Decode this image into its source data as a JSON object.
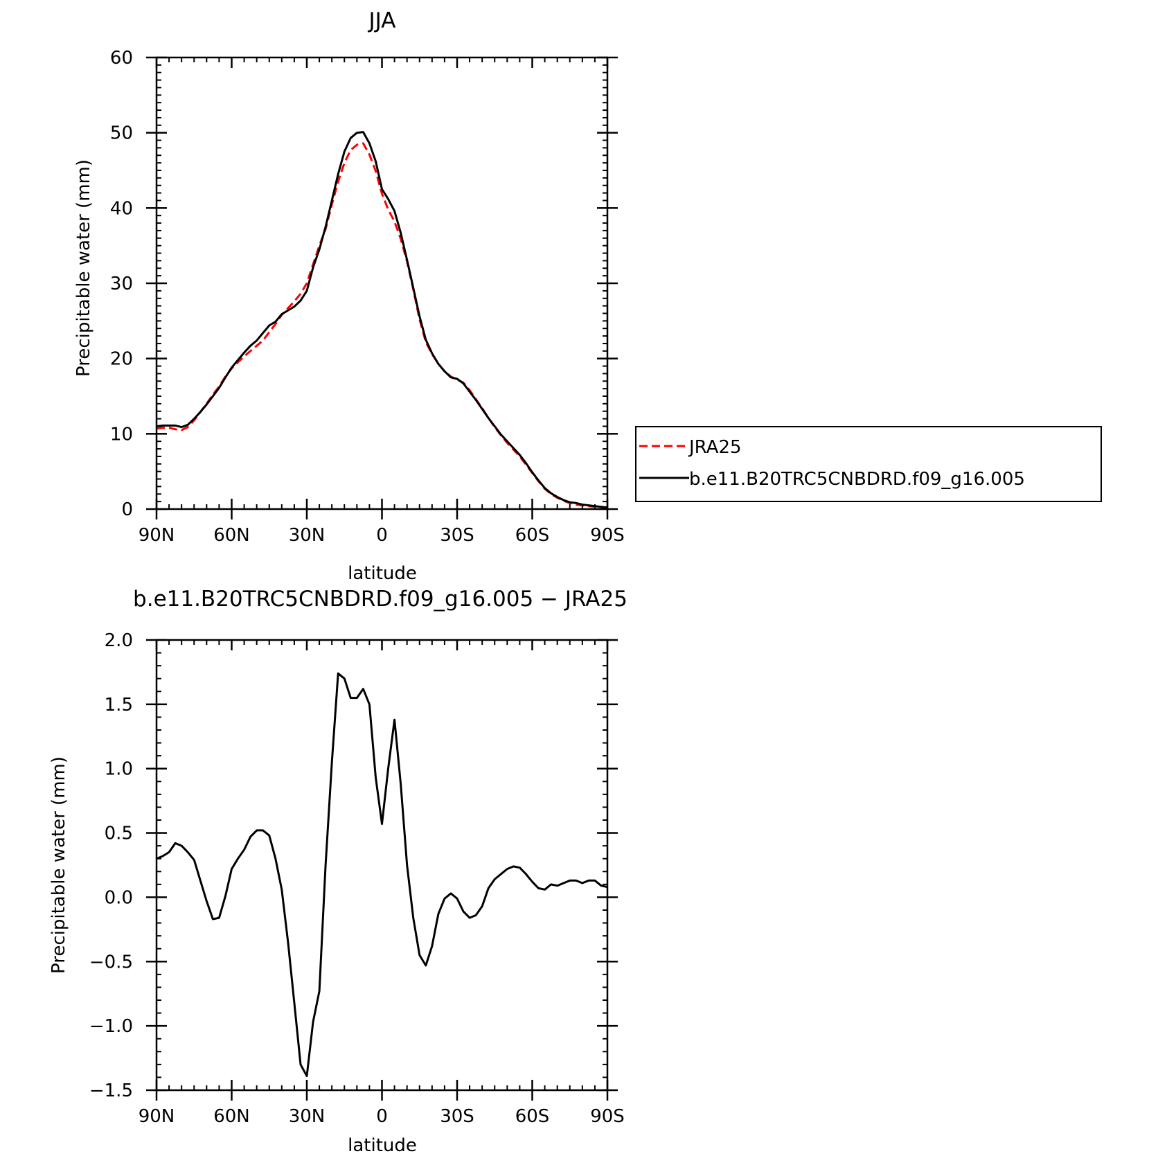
{
  "chart_data": [
    {
      "type": "line",
      "title": "JJA",
      "xlabel": "latitude",
      "ylabel": "Precipitable water (mm)",
      "xlim": [
        90,
        -90
      ],
      "ylim": [
        0,
        60
      ],
      "xticks": [
        90,
        60,
        30,
        0,
        -30,
        -60,
        -90
      ],
      "xtick_labels": [
        "90N",
        "60N",
        "30N",
        "0",
        "30S",
        "60S",
        "90S"
      ],
      "yticks": [
        0,
        10,
        20,
        30,
        40,
        50,
        60
      ],
      "ytick_labels": [
        "0",
        "10",
        "20",
        "30",
        "40",
        "50",
        "60"
      ],
      "grid": false,
      "legend_position": "right",
      "series": [
        {
          "name": "JRA25",
          "color": "#ff0000",
          "dash": "dashed",
          "x": [
            90,
            87.5,
            85,
            82.5,
            80,
            77.5,
            75,
            72.5,
            70,
            67.5,
            65,
            62.5,
            60,
            57.5,
            55,
            52.5,
            50,
            47.5,
            45,
            42.5,
            40,
            37.5,
            35,
            32.5,
            30,
            27.5,
            25,
            22.5,
            20,
            17.5,
            15,
            12.5,
            10,
            7.5,
            5,
            2.5,
            0,
            -2.5,
            -5,
            -7.5,
            -10,
            -12.5,
            -15,
            -17.5,
            -20,
            -22.5,
            -25,
            -27.5,
            -30,
            -32.5,
            -35,
            -37.5,
            -40,
            -42.5,
            -45,
            -47.5,
            -50,
            -52.5,
            -55,
            -57.5,
            -60,
            -62.5,
            -65,
            -67.5,
            -70,
            -72.5,
            -75,
            -77.5,
            -80,
            -82.5,
            -85,
            -87.5,
            -90
          ],
          "y": [
            10.7,
            10.8,
            10.8,
            10.6,
            10.5,
            10.9,
            11.8,
            12.9,
            14.0,
            15.2,
            16.3,
            17.6,
            18.7,
            19.5,
            20.3,
            21.0,
            21.7,
            22.4,
            23.5,
            24.6,
            25.8,
            26.7,
            27.6,
            28.6,
            30.0,
            32.5,
            35.0,
            37.2,
            40.5,
            43.5,
            46.0,
            47.7,
            48.4,
            48.6,
            47.1,
            44.9,
            41.9,
            39.8,
            38.2,
            35.9,
            32.9,
            29.2,
            25.2,
            22.2,
            20.6,
            19.3,
            18.3,
            17.6,
            17.2,
            16.8,
            15.8,
            14.6,
            13.4,
            12.1,
            10.9,
            9.8,
            8.8,
            7.9,
            7.0,
            5.9,
            4.8,
            3.7,
            2.7,
            2.0,
            1.5,
            1.1,
            0.8,
            0.6,
            0.5,
            0.4,
            0.3,
            0.2,
            0.1
          ]
        },
        {
          "name": "b.e11.B20TRC5CNBDRD.f09_g16.005",
          "color": "#000000",
          "dash": "solid",
          "x": [
            90,
            87.5,
            85,
            82.5,
            80,
            77.5,
            75,
            72.5,
            70,
            67.5,
            65,
            62.5,
            60,
            57.5,
            55,
            52.5,
            50,
            47.5,
            45,
            42.5,
            40,
            37.5,
            35,
            32.5,
            30,
            27.5,
            25,
            22.5,
            20,
            17.5,
            15,
            12.5,
            10,
            7.5,
            5,
            2.5,
            0,
            -2.5,
            -5,
            -7.5,
            -10,
            -12.5,
            -15,
            -17.5,
            -20,
            -22.5,
            -25,
            -27.5,
            -30,
            -32.5,
            -35,
            -37.5,
            -40,
            -42.5,
            -45,
            -47.5,
            -50,
            -52.5,
            -55,
            -57.5,
            -60,
            -62.5,
            -65,
            -67.5,
            -70,
            -72.5,
            -75,
            -77.5,
            -80,
            -82.5,
            -85,
            -87.5,
            -90
          ],
          "y": [
            11.0,
            11.1,
            11.1,
            11.1,
            10.9,
            11.2,
            12.0,
            12.9,
            13.9,
            15.0,
            16.1,
            17.5,
            18.8,
            19.8,
            20.8,
            21.7,
            22.4,
            23.4,
            24.4,
            24.9,
            25.9,
            26.4,
            26.9,
            27.7,
            29.0,
            32.1,
            34.5,
            37.5,
            41.0,
            44.5,
            47.5,
            49.3,
            50.0,
            50.1,
            48.6,
            46.2,
            42.5,
            41.2,
            39.6,
            36.7,
            33.1,
            29.4,
            25.6,
            22.5,
            20.7,
            19.3,
            18.3,
            17.5,
            17.3,
            16.7,
            15.6,
            14.5,
            13.3,
            12.1,
            11.0,
            9.9,
            9.0,
            8.1,
            7.2,
            6.1,
            4.9,
            3.8,
            2.8,
            2.1,
            1.6,
            1.2,
            0.9,
            0.8,
            0.6,
            0.5,
            0.4,
            0.3,
            0.2
          ]
        }
      ]
    },
    {
      "type": "line",
      "title": "b.e11.B20TRC5CNBDRD.f09_g16.005 − JRA25",
      "xlabel": "latitude",
      "ylabel": "Precipitable water (mm)",
      "xlim": [
        90,
        -90
      ],
      "ylim": [
        -1.5,
        2.0
      ],
      "xticks": [
        90,
        60,
        30,
        0,
        -30,
        -60,
        -90
      ],
      "xtick_labels": [
        "90N",
        "60N",
        "30N",
        "0",
        "30S",
        "60S",
        "90S"
      ],
      "yticks": [
        -1.5,
        -1.0,
        -0.5,
        0.0,
        0.5,
        1.0,
        1.5,
        2.0
      ],
      "ytick_labels": [
        "−1.5",
        "−1.0",
        "−0.5",
        "0.0",
        "0.5",
        "1.0",
        "1.5",
        "2.0"
      ],
      "grid": false,
      "series": [
        {
          "color": "#000000",
          "dash": "solid",
          "x": [
            90,
            87.5,
            85,
            82.5,
            80,
            77.5,
            75,
            72.5,
            70,
            67.5,
            65,
            62.5,
            60,
            57.5,
            55,
            52.5,
            50,
            47.5,
            45,
            42.5,
            40,
            37.5,
            35,
            32.5,
            30,
            27.5,
            25,
            22.5,
            20,
            17.5,
            15,
            12.5,
            10,
            7.5,
            5,
            2.5,
            0,
            -2.5,
            -5,
            -7.5,
            -10,
            -12.5,
            -15,
            -17.5,
            -20,
            -22.5,
            -25,
            -27.5,
            -30,
            -32.5,
            -35,
            -37.5,
            -40,
            -42.5,
            -45,
            -47.5,
            -50,
            -52.5,
            -55,
            -57.5,
            -60,
            -62.5,
            -65,
            -67.5,
            -70,
            -72.5,
            -75,
            -77.5,
            -80,
            -82.5,
            -85,
            -87.5,
            -90
          ],
          "y": [
            0.3,
            0.32,
            0.35,
            0.42,
            0.4,
            0.35,
            0.29,
            0.13,
            -0.03,
            -0.17,
            -0.16,
            0.01,
            0.22,
            0.3,
            0.37,
            0.47,
            0.52,
            0.52,
            0.48,
            0.3,
            0.06,
            -0.35,
            -0.82,
            -1.3,
            -1.39,
            -0.97,
            -0.73,
            0.25,
            1.05,
            1.74,
            1.7,
            1.55,
            1.55,
            1.62,
            1.5,
            0.93,
            0.57,
            1.0,
            1.38,
            0.88,
            0.25,
            -0.16,
            -0.45,
            -0.53,
            -0.38,
            -0.13,
            -0.01,
            0.03,
            -0.01,
            -0.11,
            -0.16,
            -0.14,
            -0.07,
            0.07,
            0.14,
            0.18,
            0.22,
            0.24,
            0.23,
            0.18,
            0.12,
            0.07,
            0.06,
            0.1,
            0.09,
            0.11,
            0.13,
            0.13,
            0.11,
            0.13,
            0.13,
            0.09,
            0.08
          ]
        }
      ]
    }
  ],
  "legend": {
    "entries": [
      "JRA25",
      "b.e11.B20TRC5CNBDRD.f09_g16.005"
    ]
  }
}
